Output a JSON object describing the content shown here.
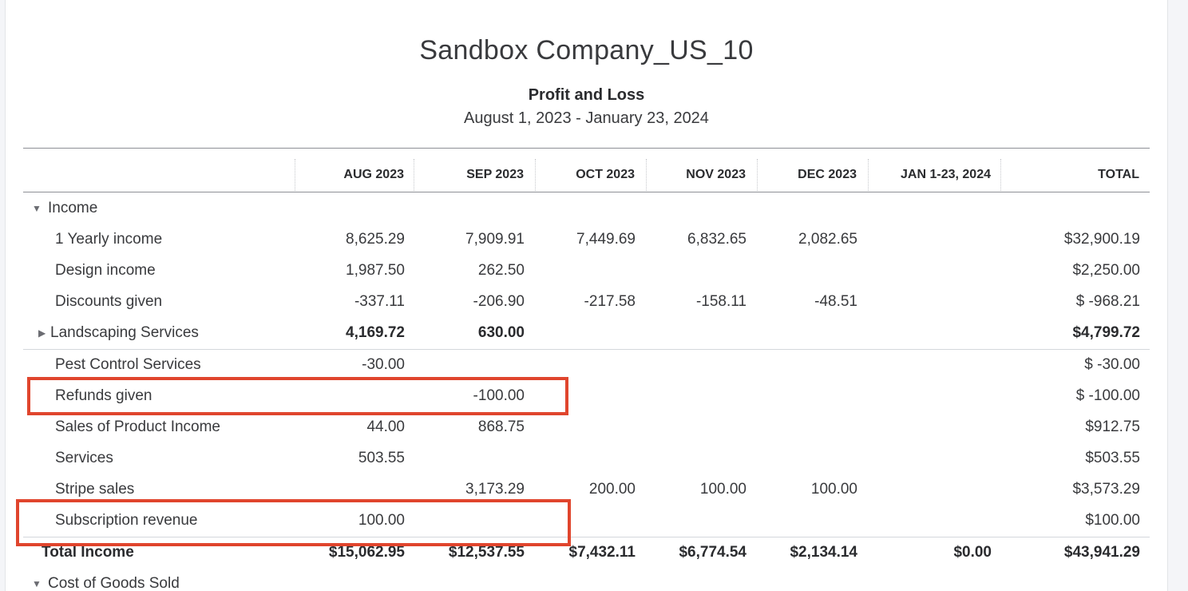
{
  "report": {
    "company": "Sandbox Company_US_10",
    "title": "Profit and Loss",
    "date_range": "August 1, 2023 - January 23, 2024"
  },
  "columns": [
    "AUG 2023",
    "SEP 2023",
    "OCT 2023",
    "NOV 2023",
    "DEC 2023",
    "JAN 1-23, 2024",
    "TOTAL"
  ],
  "rows": [
    {
      "label": "Income",
      "values": [
        "",
        "",
        "",
        "",
        "",
        "",
        ""
      ],
      "caret": "▼"
    },
    {
      "label": "1 Yearly income",
      "values": [
        "8,625.29",
        "7,909.91",
        "7,449.69",
        "6,832.65",
        "2,082.65",
        "",
        "$32,900.19"
      ]
    },
    {
      "label": "Design income",
      "values": [
        "1,987.50",
        "262.50",
        "",
        "",
        "",
        "",
        "$2,250.00"
      ]
    },
    {
      "label": "Discounts given",
      "values": [
        "-337.11",
        "-206.90",
        "-217.58",
        "-158.11",
        "-48.51",
        "",
        "$ -968.21"
      ]
    },
    {
      "label": "Landscaping Services",
      "values": [
        "4,169.72",
        "630.00",
        "",
        "",
        "",
        "",
        "$4,799.72"
      ],
      "caret": "▶"
    },
    {
      "label": "Pest Control Services",
      "values": [
        "-30.00",
        "",
        "",
        "",
        "",
        "",
        "$ -30.00"
      ]
    },
    {
      "label": "Refunds given",
      "values": [
        "",
        "-100.00",
        "",
        "",
        "",
        "",
        "$ -100.00"
      ]
    },
    {
      "label": "Sales of Product Income",
      "values": [
        "44.00",
        "868.75",
        "",
        "",
        "",
        "",
        "$912.75"
      ]
    },
    {
      "label": "Services",
      "values": [
        "503.55",
        "",
        "",
        "",
        "",
        "",
        "$503.55"
      ]
    },
    {
      "label": "Stripe sales",
      "values": [
        "",
        "3,173.29",
        "200.00",
        "100.00",
        "100.00",
        "",
        "$3,573.29"
      ]
    },
    {
      "label": "Subscription revenue",
      "values": [
        "100.00",
        "",
        "",
        "",
        "",
        "",
        "$100.00"
      ]
    },
    {
      "label": "Total Income",
      "values": [
        "$15,062.95",
        "$12,537.55",
        "$7,432.11",
        "$6,774.54",
        "$2,134.14",
        "$0.00",
        "$43,941.29"
      ]
    },
    {
      "label": "Cost of Goods Sold",
      "values": [
        "",
        "",
        "",
        "",
        "",
        "",
        ""
      ],
      "caret": "▼"
    }
  ],
  "colors": {
    "highlight": "#e0452d",
    "rule": "#8d9096"
  }
}
